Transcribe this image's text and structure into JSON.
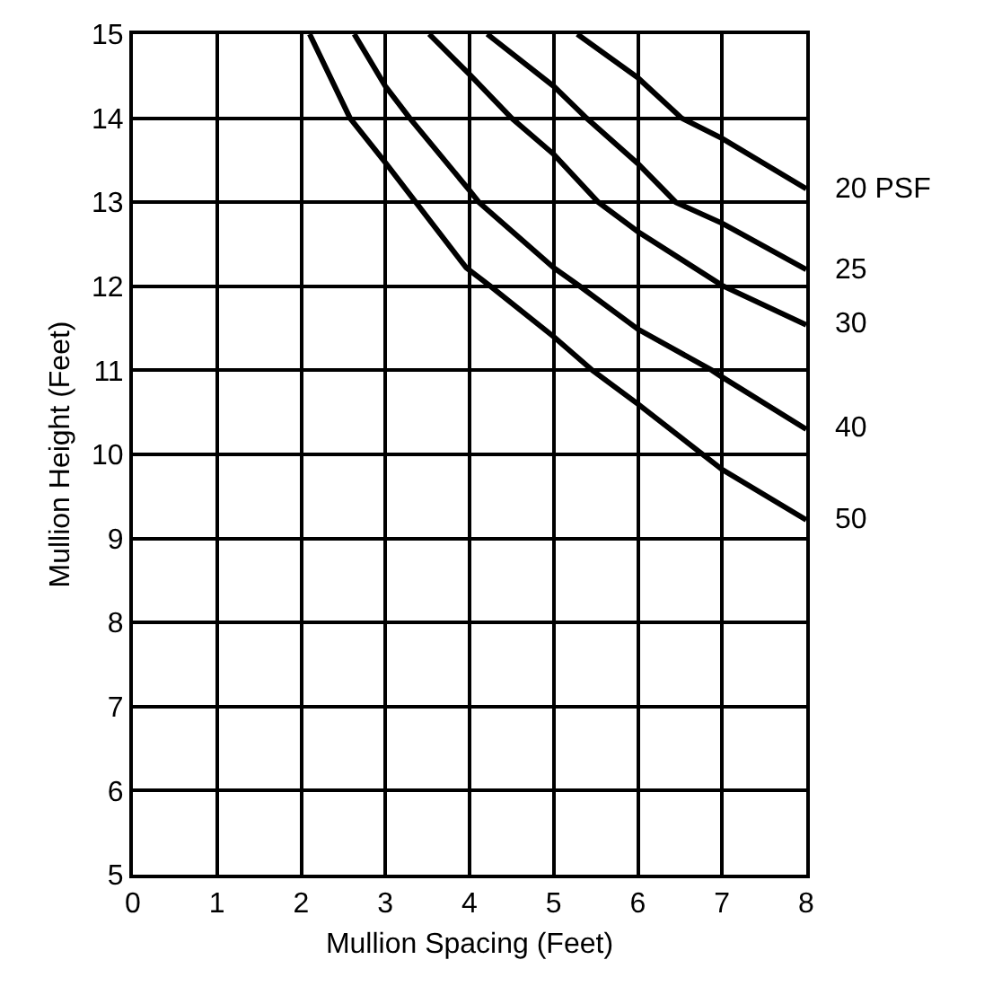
{
  "chart_data": {
    "type": "line",
    "xlabel": "Mullion Spacing (Feet)",
    "ylabel": "Mullion Height (Feet)",
    "xlim": [
      0,
      8
    ],
    "ylim": [
      5,
      15
    ],
    "xticks": [
      0,
      1,
      2,
      3,
      4,
      5,
      6,
      7,
      8
    ],
    "yticks": [
      5,
      6,
      7,
      8,
      9,
      10,
      11,
      12,
      13,
      14,
      15
    ],
    "grid": true,
    "legend": false,
    "marker": "none",
    "line_style": "solid",
    "series": [
      {
        "name": "20 PSF",
        "color": "#000000",
        "x": [
          5.28,
          6,
          6.52,
          7,
          8
        ],
        "values": [
          15,
          14.48,
          14,
          13.76,
          13.16
        ]
      },
      {
        "name": "25",
        "color": "#000000",
        "x": [
          4.21,
          5,
          5.39,
          6,
          6.45,
          7,
          8
        ],
        "values": [
          15,
          14.38,
          14,
          13.46,
          13,
          12.75,
          12.2
        ]
      },
      {
        "name": "30",
        "color": "#000000",
        "x": [
          3.52,
          4,
          4.5,
          5,
          5.53,
          6,
          7,
          8
        ],
        "values": [
          15,
          14.52,
          14,
          13.57,
          13,
          12.65,
          12.01,
          11.54
        ]
      },
      {
        "name": "40",
        "color": "#000000",
        "x": [
          2.63,
          3,
          3.29,
          4,
          4.11,
          5,
          5.31,
          6,
          6.88,
          7,
          8
        ],
        "values": [
          15,
          14.38,
          14,
          13.14,
          13,
          12.22,
          12,
          11.49,
          11,
          10.92,
          10.3
        ]
      },
      {
        "name": "50",
        "color": "#000000",
        "x": [
          2.1,
          2.58,
          3,
          3.96,
          4.25,
          5,
          5.46,
          6,
          7,
          8
        ],
        "values": [
          15,
          14,
          13.47,
          12.22,
          12,
          11.4,
          11,
          10.6,
          9.82,
          9.22
        ]
      }
    ]
  }
}
